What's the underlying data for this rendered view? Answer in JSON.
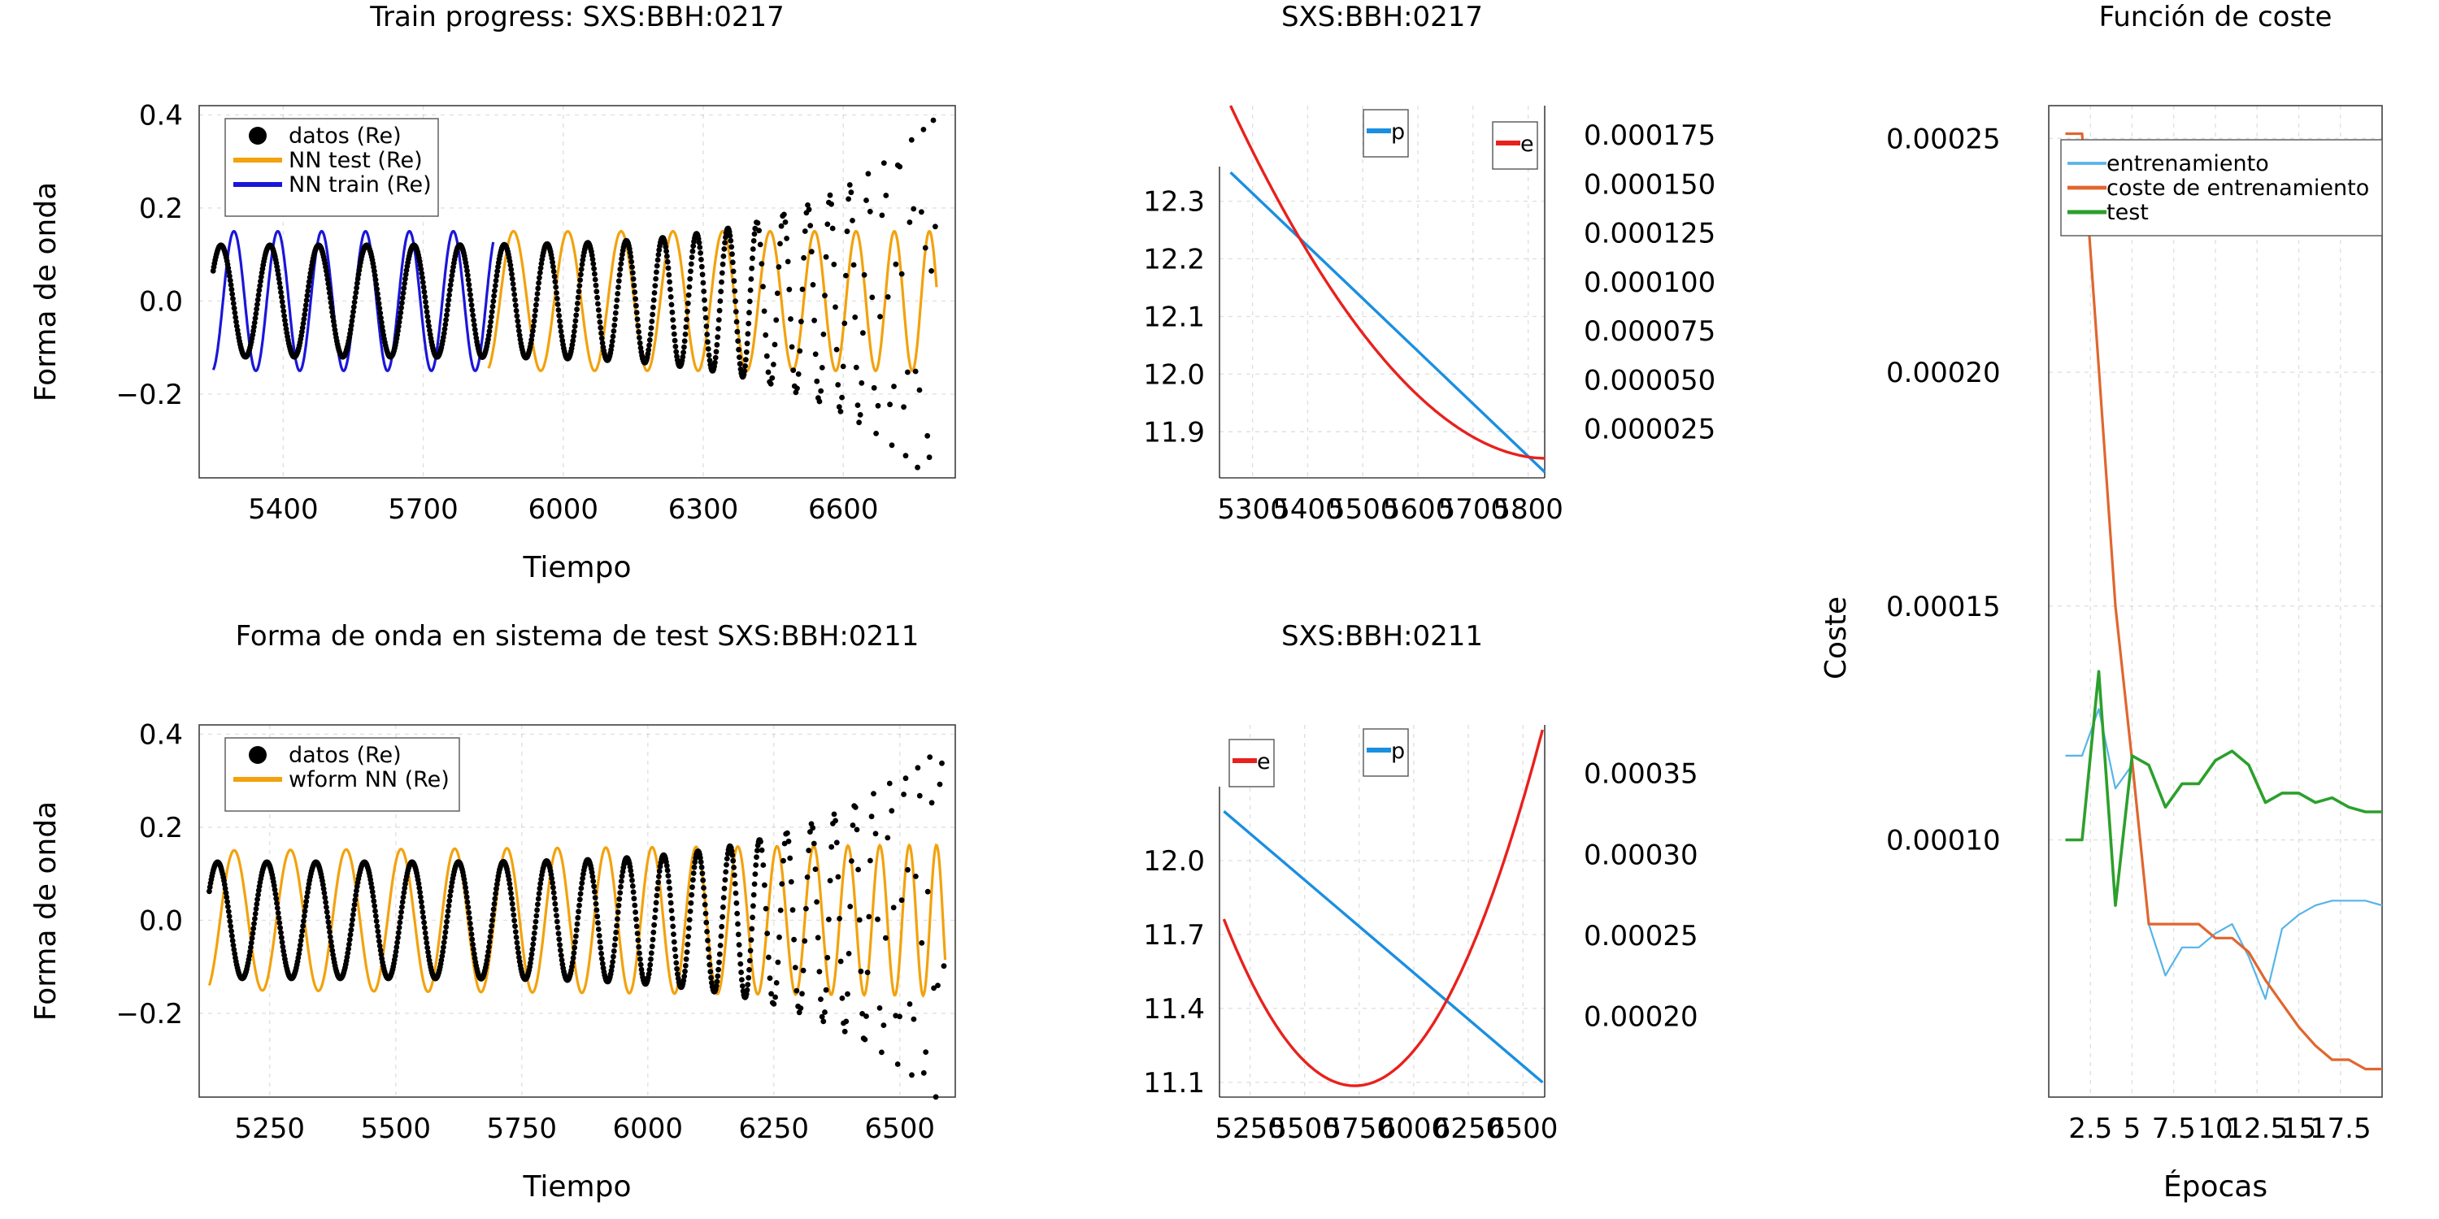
{
  "colors": {
    "data": "#000000",
    "nn_test": "#f2a20d",
    "nn_train": "#1a16d9",
    "p_line": "#1a8fe0",
    "e_line": "#e8211d",
    "entrenamiento": "#56b4e9",
    "coste_entrenamiento": "#e0662e",
    "test": "#2ca02c"
  },
  "chart_data": [
    {
      "id": "wave_train",
      "type": "line",
      "title": "Train progress: SXS:BBH:0217",
      "xlabel": "Tiempo",
      "ylabel": "Forma de onda",
      "xlim": [
        5220,
        6840
      ],
      "ylim": [
        -0.38,
        0.42
      ],
      "xticks": [
        5400,
        5700,
        6000,
        6300,
        6600
      ],
      "yticks": [
        -0.2,
        0.0,
        0.2,
        0.4
      ],
      "ytick_labels": [
        "−0.2",
        "0.0",
        "0.2",
        "0.4"
      ],
      "grid": true,
      "legend": "top-left",
      "legend_entries": [
        "datos (Re)",
        "NN test (Re)",
        "NN train (Re)"
      ],
      "series": [
        {
          "name": "datos (Re)",
          "style": "dots",
          "x": [
            5250,
            5800
          ],
          "params": {
            "t0": 5250,
            "t1": 6800,
            "amp0": 0.12,
            "amp1": 0.4,
            "period0": 105,
            "period1": 20,
            "phase": -1.0
          }
        },
        {
          "name": "NN test (Re)",
          "style": "line",
          "x": [
            5840,
            6800
          ],
          "params": {
            "amp": 0.15,
            "period": 117,
            "t0": 5840,
            "phase": -1.3
          }
        },
        {
          "name": "NN train (Re)",
          "style": "line",
          "x": [
            5250,
            5850
          ],
          "params": {
            "amp": 0.15,
            "period": 94,
            "t0": 5250,
            "phase": -1.4
          }
        }
      ],
      "datos_range": [
        5250,
        6800
      ]
    },
    {
      "id": "params_train",
      "type": "line",
      "title": "SXS:BBH:0217",
      "xticks": [
        5300,
        5400,
        5500,
        5600,
        5700,
        5800
      ],
      "xlim": [
        5240,
        5830
      ],
      "left_ylim": [
        11.82,
        12.36
      ],
      "left_yticks": [
        11.9,
        12.0,
        12.1,
        12.2,
        12.3
      ],
      "right_ylim": [
        0.0,
        0.00019
      ],
      "right_yticks": [
        2.5e-05,
        5e-05,
        7.5e-05,
        0.0001,
        0.000125,
        0.00015,
        0.000175
      ],
      "right_ytick_labels": [
        "0.000025",
        "0.000050",
        "0.000075",
        "0.000100",
        "0.000125",
        "0.000150",
        "0.000175"
      ],
      "grid": true,
      "legend_entries": [
        "p",
        "e"
      ],
      "series": [
        {
          "name": "p",
          "axis": "left",
          "x": [
            5260,
            5830
          ],
          "y": [
            12.35,
            11.83
          ]
        },
        {
          "name": "e",
          "axis": "right",
          "x": [
            5260,
            5830
          ],
          "y": [
            0.00019,
            1e-05
          ],
          "curve": 1.9
        }
      ]
    },
    {
      "id": "cost",
      "type": "line",
      "title": "Función de coste",
      "xlabel": "Épocas",
      "ylabel": "Coste",
      "xlim": [
        0.0,
        20.0
      ],
      "ylim": [
        4.5e-05,
        0.000257
      ],
      "xticks": [
        2.5,
        5.0,
        7.5,
        10.0,
        12.5,
        15.0,
        17.5
      ],
      "yticks": [
        0.0001,
        0.00015,
        0.0002,
        0.00025
      ],
      "ytick_labels": [
        "0.00010",
        "0.00015",
        "0.00020",
        "0.00025"
      ],
      "grid": true,
      "legend": "top-left",
      "legend_entries": [
        "entrenamiento",
        "coste de entrenamiento",
        "test"
      ],
      "series": [
        {
          "name": "entrenamiento",
          "x": [
            1,
            2,
            3,
            4,
            5,
            6,
            7,
            8,
            9,
            10,
            11,
            12,
            13,
            14,
            15,
            16,
            17,
            18,
            19,
            20
          ],
          "y": [
            0.000118,
            0.000118,
            0.000128,
            0.000111,
            0.000116,
            8.2e-05,
            7.1e-05,
            7.7e-05,
            7.7e-05,
            8e-05,
            8.2e-05,
            7.5e-05,
            6.6e-05,
            8.1e-05,
            8.4e-05,
            8.6e-05,
            8.7e-05,
            8.7e-05,
            8.7e-05,
            8.6e-05
          ]
        },
        {
          "name": "coste de entrenamiento",
          "x": [
            1,
            2,
            3,
            4,
            5,
            6,
            7,
            8,
            9,
            10,
            11,
            12,
            13,
            14,
            15,
            16,
            17,
            18,
            19,
            20
          ],
          "y": [
            0.000251,
            0.000251,
            0.000201,
            0.00015,
            0.000117,
            8.2e-05,
            8.2e-05,
            8.2e-05,
            8.2e-05,
            7.9e-05,
            7.9e-05,
            7.6e-05,
            7e-05,
            6.5e-05,
            6e-05,
            5.6e-05,
            5.3e-05,
            5.3e-05,
            5.1e-05,
            5.1e-05
          ]
        },
        {
          "name": "test",
          "x": [
            1,
            2,
            3,
            4,
            5,
            6,
            7,
            8,
            9,
            10,
            11,
            12,
            13,
            14,
            15,
            16,
            17,
            18,
            19,
            20
          ],
          "y": [
            0.0001,
            0.0001,
            0.000136,
            8.6e-05,
            0.000118,
            0.000116,
            0.000107,
            0.000112,
            0.000112,
            0.000117,
            0.000119,
            0.000116,
            0.000108,
            0.00011,
            0.00011,
            0.000108,
            0.000109,
            0.000107,
            0.000106,
            0.000106
          ]
        }
      ]
    },
    {
      "id": "wave_test",
      "type": "line",
      "title": "Forma de onda en sistema de test SXS:BBH:0211",
      "xlabel": "Tiempo",
      "ylabel": "Forma de onda",
      "xlim": [
        5110,
        6610
      ],
      "ylim": [
        -0.38,
        0.42
      ],
      "xticks": [
        5250,
        5500,
        5750,
        6000,
        6250,
        6500
      ],
      "yticks": [
        -0.2,
        0.0,
        0.2,
        0.4
      ],
      "ytick_labels": [
        "−0.2",
        "0.0",
        "0.2",
        "0.4"
      ],
      "grid": true,
      "legend": "top-left",
      "legend_entries": [
        "datos (Re)",
        "wform NN (Re)"
      ],
      "series": [
        {
          "name": "datos (Re)",
          "style": "dots",
          "params": {
            "t0": 5130,
            "t1": 6590,
            "amp0": 0.125,
            "amp1": 0.4,
            "period0": 98,
            "period1": 19,
            "phase": -1.05
          }
        },
        {
          "name": "wform NN (Re)",
          "style": "line",
          "params": {
            "amp": 0.15,
            "period": 112,
            "t0": 5140,
            "phase": -1.2
          }
        }
      ]
    },
    {
      "id": "params_test",
      "type": "line",
      "title": "SXS:BBH:0211",
      "xticks": [
        5250,
        5500,
        5750,
        6000,
        6250,
        6500
      ],
      "xlim": [
        5110,
        6600
      ],
      "left_ylim": [
        11.04,
        12.3
      ],
      "left_yticks": [
        11.1,
        11.4,
        11.7,
        12.0
      ],
      "right_ylim": [
        0.00015,
        0.00038
      ],
      "right_yticks": [
        0.0002,
        0.00025,
        0.0003,
        0.00035
      ],
      "right_ytick_labels": [
        "0.00020",
        "0.00025",
        "0.00030",
        "0.00035"
      ],
      "grid": true,
      "legend_entries": [
        "e",
        "p"
      ],
      "series": [
        {
          "name": "p",
          "axis": "left",
          "x": [
            5130,
            6590
          ],
          "y": [
            12.2,
            11.1
          ]
        },
        {
          "name": "e",
          "axis": "right",
          "x_min": 5730,
          "y_min": 0.000157,
          "y_left": 0.00026,
          "y_right": 0.000377,
          "x": [
            5130,
            6590
          ]
        }
      ]
    }
  ]
}
